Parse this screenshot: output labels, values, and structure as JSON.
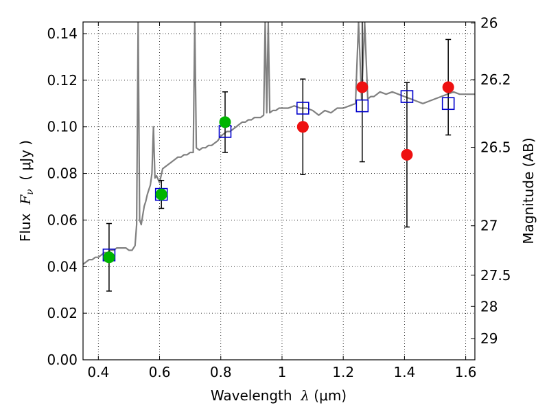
{
  "chart_data": {
    "type": "scatter",
    "xlim": [
      0.35,
      1.63
    ],
    "ylim": [
      0.0,
      0.145
    ],
    "x_ticks": [
      0.4,
      0.6,
      0.8,
      1.0,
      1.2,
      1.4,
      1.6
    ],
    "x_tick_labels": [
      "0.4",
      "0.6",
      "0.8",
      "1",
      "1.2",
      "1.4",
      "1.6"
    ],
    "y_ticks": [
      0.0,
      0.02,
      0.04,
      0.06,
      0.08,
      0.1,
      0.12,
      0.14
    ],
    "y_tick_labels": [
      "0.00",
      "0.02",
      "0.04",
      "0.06",
      "0.08",
      "0.10",
      "0.12",
      "0.14"
    ],
    "right_axis": {
      "label": "Magnitude (AB)",
      "ticks": [
        {
          "mag": 26,
          "label": "26"
        },
        {
          "mag": 26.2,
          "label": "26.2"
        },
        {
          "mag": 26.5,
          "label": "26.5"
        },
        {
          "mag": 27,
          "label": "27"
        },
        {
          "mag": 27.5,
          "label": "27.5"
        },
        {
          "mag": 28,
          "label": "28"
        },
        {
          "mag": 29,
          "label": "29"
        }
      ]
    },
    "xlabel": {
      "prefix": "Wavelength  ",
      "symbol": "λ",
      "suffix": " (μm)"
    },
    "ylabel": {
      "prefix": "Flux  ",
      "symbol": "F",
      "sub": "ν",
      "suffix": "  ( μJy )"
    },
    "grid": "dotted",
    "legend": "none",
    "colors": {
      "template": "#808080",
      "model": "#0000cc",
      "green": "#00b400",
      "red": "#ee1111",
      "errorbar": "#000000"
    },
    "series": [
      {
        "type": "line",
        "x": [
          0.35,
          0.36,
          0.37,
          0.38,
          0.39,
          0.4,
          0.41,
          0.42,
          0.43,
          0.44,
          0.45,
          0.46,
          0.47,
          0.48,
          0.49,
          0.5,
          0.51,
          0.52,
          0.525,
          0.53,
          0.535,
          0.54,
          0.545,
          0.55,
          0.555,
          0.56,
          0.57,
          0.575,
          0.58,
          0.585,
          0.59,
          0.6,
          0.61,
          0.62,
          0.63,
          0.64,
          0.65,
          0.66,
          0.67,
          0.68,
          0.69,
          0.7,
          0.71,
          0.715,
          0.72,
          0.73,
          0.74,
          0.75,
          0.76,
          0.77,
          0.78,
          0.79,
          0.8,
          0.81,
          0.82,
          0.83,
          0.84,
          0.85,
          0.86,
          0.87,
          0.88,
          0.89,
          0.9,
          0.91,
          0.92,
          0.93,
          0.94,
          0.945,
          0.95,
          0.955,
          0.96,
          0.97,
          0.98,
          0.99,
          1.0,
          1.02,
          1.04,
          1.06,
          1.08,
          1.1,
          1.12,
          1.14,
          1.16,
          1.18,
          1.2,
          1.22,
          1.24,
          1.25,
          1.26,
          1.27,
          1.28,
          1.29,
          1.3,
          1.31,
          1.32,
          1.34,
          1.36,
          1.38,
          1.4,
          1.42,
          1.44,
          1.46,
          1.48,
          1.5,
          1.52,
          1.54,
          1.56,
          1.58,
          1.6,
          1.63
        ],
        "y": [
          0.041,
          0.042,
          0.043,
          0.043,
          0.044,
          0.044,
          0.045,
          0.046,
          0.046,
          0.047,
          0.047,
          0.048,
          0.048,
          0.048,
          0.048,
          0.047,
          0.047,
          0.049,
          0.058,
          0.145,
          0.06,
          0.058,
          0.062,
          0.066,
          0.068,
          0.071,
          0.075,
          0.08,
          0.1,
          0.078,
          0.079,
          0.076,
          0.082,
          0.083,
          0.084,
          0.085,
          0.086,
          0.087,
          0.087,
          0.088,
          0.088,
          0.089,
          0.089,
          0.145,
          0.091,
          0.09,
          0.091,
          0.091,
          0.092,
          0.092,
          0.093,
          0.094,
          0.096,
          0.097,
          0.098,
          0.098,
          0.099,
          0.1,
          0.101,
          0.102,
          0.102,
          0.103,
          0.103,
          0.104,
          0.104,
          0.104,
          0.105,
          0.145,
          0.106,
          0.145,
          0.106,
          0.107,
          0.107,
          0.108,
          0.108,
          0.108,
          0.109,
          0.108,
          0.108,
          0.107,
          0.105,
          0.107,
          0.106,
          0.108,
          0.108,
          0.109,
          0.11,
          0.145,
          0.112,
          0.145,
          0.112,
          0.113,
          0.113,
          0.114,
          0.115,
          0.114,
          0.115,
          0.114,
          0.113,
          0.112,
          0.111,
          0.11,
          0.111,
          0.112,
          0.113,
          0.114,
          0.115,
          0.114,
          0.114,
          0.114
        ]
      },
      {
        "type": "scatter",
        "marker": "open-square",
        "points": [
          {
            "x": 0.435,
            "y": 0.045
          },
          {
            "x": 0.606,
            "y": 0.071
          },
          {
            "x": 0.814,
            "y": 0.098
          },
          {
            "x": 1.068,
            "y": 0.108
          },
          {
            "x": 1.262,
            "y": 0.109
          },
          {
            "x": 1.408,
            "y": 0.113
          },
          {
            "x": 1.543,
            "y": 0.11
          }
        ]
      },
      {
        "type": "scatter",
        "marker": "filled-circle",
        "color": "green",
        "points": [
          {
            "x": 0.435,
            "y": 0.044,
            "err": 0.0145
          },
          {
            "x": 0.606,
            "y": 0.071,
            "err": 0.006
          },
          {
            "x": 0.814,
            "y": 0.102,
            "err": 0.013
          }
        ]
      },
      {
        "type": "scatter",
        "marker": "filled-circle",
        "color": "red",
        "points": [
          {
            "x": 1.068,
            "y": 0.1,
            "err": 0.0205
          },
          {
            "x": 1.262,
            "y": 0.117,
            "err": 0.032
          },
          {
            "x": 1.408,
            "y": 0.088,
            "err": 0.031
          },
          {
            "x": 1.543,
            "y": 0.117,
            "err": 0.0205
          }
        ]
      }
    ]
  }
}
